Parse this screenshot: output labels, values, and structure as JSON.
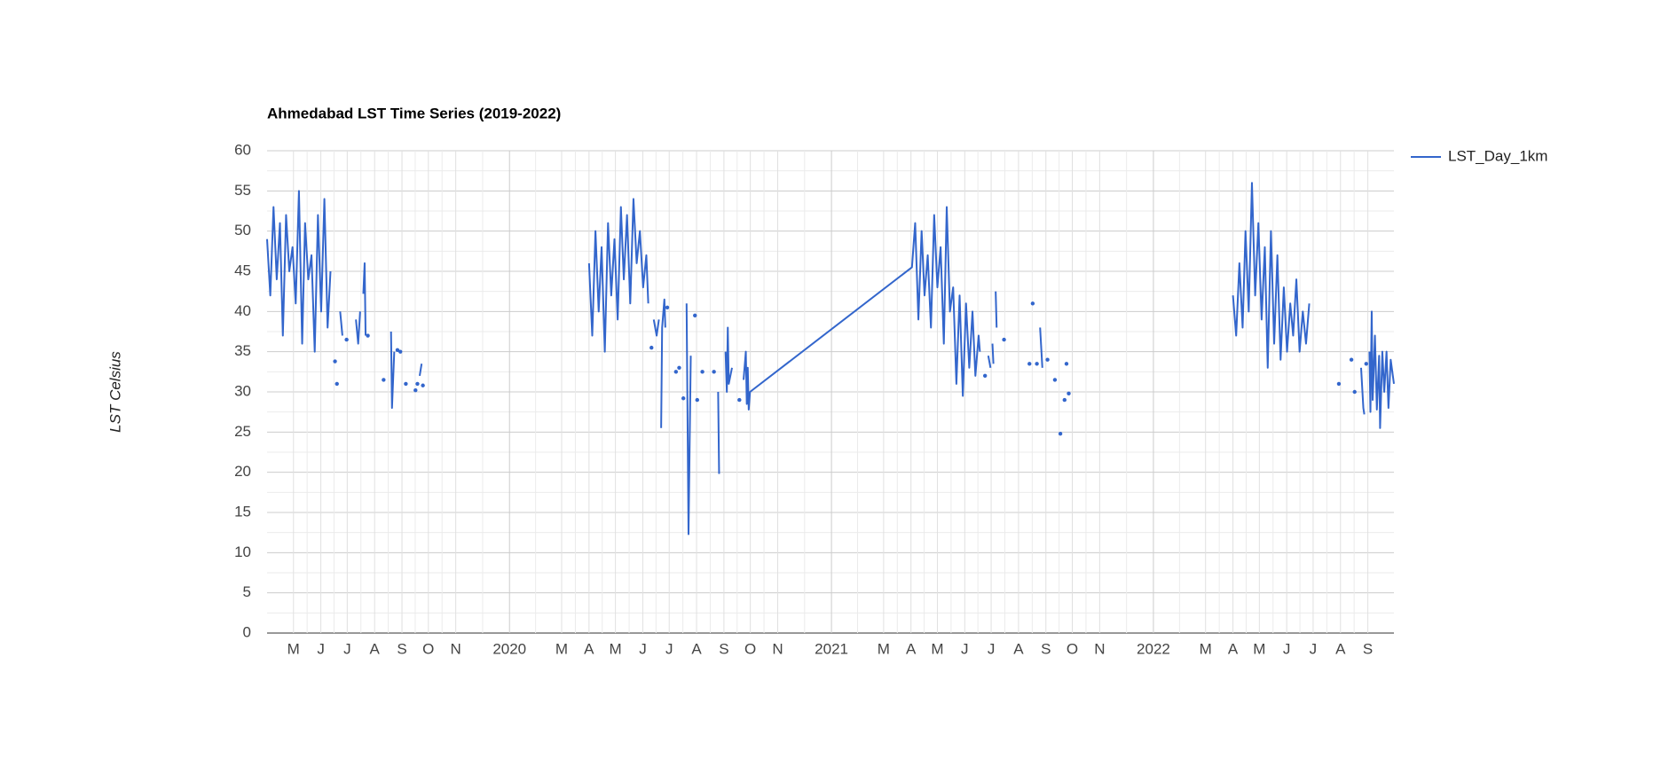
{
  "chart_data": {
    "type": "line",
    "title": "Ahmedabad LST Time Series (2019-2022)",
    "y_label": "LST Celsius",
    "legend_position": "right",
    "grid": true,
    "xlim": [
      2019.247,
      2022.747
    ],
    "ylim": [
      0,
      60
    ],
    "yticks": [
      0,
      5,
      10,
      15,
      20,
      25,
      30,
      35,
      40,
      45,
      50,
      55,
      60
    ],
    "xticks": [
      {
        "value": 2019.329,
        "label": "M"
      },
      {
        "value": 2019.414,
        "label": "J"
      },
      {
        "value": 2019.496,
        "label": "J"
      },
      {
        "value": 2019.581,
        "label": "A"
      },
      {
        "value": 2019.666,
        "label": "S"
      },
      {
        "value": 2019.748,
        "label": "O"
      },
      {
        "value": 2019.833,
        "label": "N"
      },
      2020,
      {
        "value": 2020.162,
        "label": "M"
      },
      {
        "value": 2020.247,
        "label": "A"
      },
      {
        "value": 2020.329,
        "label": "M"
      },
      {
        "value": 2020.414,
        "label": "J"
      },
      {
        "value": 2020.496,
        "label": "J"
      },
      {
        "value": 2020.581,
        "label": "A"
      },
      {
        "value": 2020.666,
        "label": "S"
      },
      {
        "value": 2020.748,
        "label": "O"
      },
      {
        "value": 2020.833,
        "label": "N"
      },
      2021,
      {
        "value": 2021.162,
        "label": "M"
      },
      {
        "value": 2021.247,
        "label": "A"
      },
      {
        "value": 2021.329,
        "label": "M"
      },
      {
        "value": 2021.414,
        "label": "J"
      },
      {
        "value": 2021.496,
        "label": "J"
      },
      {
        "value": 2021.581,
        "label": "A"
      },
      {
        "value": 2021.666,
        "label": "S"
      },
      {
        "value": 2021.748,
        "label": "O"
      },
      {
        "value": 2021.833,
        "label": "N"
      },
      2022,
      {
        "value": 2022.162,
        "label": "M"
      },
      {
        "value": 2022.247,
        "label": "A"
      },
      {
        "value": 2022.329,
        "label": "M"
      },
      {
        "value": 2022.414,
        "label": "J"
      },
      {
        "value": 2022.496,
        "label": "J"
      },
      {
        "value": 2022.581,
        "label": "A"
      },
      {
        "value": 2022.666,
        "label": "S"
      }
    ],
    "x": [
      2019.247,
      2019.257,
      2019.267,
      2019.277,
      2019.287,
      2019.296,
      2019.306,
      2019.316,
      2019.326,
      2019.336,
      2019.346,
      2019.356,
      2019.365,
      2019.375,
      2019.385,
      2019.395,
      2019.405,
      2019.415,
      2019.425,
      2019.435,
      2019.444,
      2019.451,
      2019.458,
      2019.461,
      2019.464,
      2019.469,
      2019.474,
      2019.481,
      2019.487,
      2019.494,
      2019.508,
      2019.523,
      2019.53,
      2019.536,
      2019.541,
      2019.546,
      2019.55,
      2019.553,
      2019.556,
      2019.56,
      2019.585,
      2019.609,
      2019.62,
      2019.632,
      2019.635,
      2019.642,
      2019.647,
      2019.652,
      2019.656,
      2019.661,
      2019.67,
      2019.678,
      2019.693,
      2019.708,
      2019.711,
      2019.714,
      2019.718,
      2019.721,
      2019.727,
      2019.729,
      2019.731,
      2019.99,
      2020.247,
      2020.257,
      2020.267,
      2020.277,
      2020.286,
      2020.296,
      2020.306,
      2020.316,
      2020.326,
      2020.336,
      2020.346,
      2020.355,
      2020.365,
      2020.375,
      2020.385,
      2020.395,
      2020.405,
      2020.415,
      2020.425,
      2020.431,
      2020.436,
      2020.441,
      2020.444,
      2020.448,
      2020.457,
      2020.464,
      2020.468,
      2020.471,
      2020.474,
      2020.481,
      2020.484,
      2020.487,
      2020.49,
      2020.503,
      2020.517,
      2020.522,
      2020.527,
      2020.533,
      2020.54,
      2020.545,
      2020.55,
      2020.556,
      2020.563,
      2020.57,
      2020.576,
      2020.58,
      2020.583,
      2020.591,
      2020.599,
      2020.617,
      2020.635,
      2020.641,
      2020.648,
      2020.651,
      2020.661,
      2020.671,
      2020.675,
      2020.678,
      2020.681,
      2020.691,
      2020.702,
      2020.714,
      2020.72,
      2020.727,
      2020.734,
      2020.737,
      2020.74,
      2020.743,
      2020.747,
      2021.25,
      2021.26,
      2021.27,
      2021.28,
      2021.289,
      2021.299,
      2021.309,
      2021.319,
      2021.329,
      2021.339,
      2021.349,
      2021.358,
      2021.368,
      2021.378,
      2021.388,
      2021.398,
      2021.408,
      2021.418,
      2021.428,
      2021.438,
      2021.447,
      2021.457,
      2021.461,
      2021.469,
      2021.477,
      2021.482,
      2021.487,
      2021.494,
      2021.497,
      2021.5,
      2021.503,
      2021.506,
      2021.51,
      2021.513,
      2021.525,
      2021.536,
      2021.575,
      2021.615,
      2021.62,
      2021.625,
      2021.631,
      2021.638,
      2021.643,
      2021.648,
      2021.655,
      2021.663,
      2021.671,
      2021.682,
      2021.694,
      2021.702,
      2021.711,
      2021.717,
      2021.724,
      2021.727,
      2021.73,
      2021.733,
      2021.737,
      2022.0,
      2022.247,
      2022.257,
      2022.267,
      2022.277,
      2022.286,
      2022.296,
      2022.306,
      2022.316,
      2022.326,
      2022.336,
      2022.346,
      2022.355,
      2022.365,
      2022.375,
      2022.385,
      2022.395,
      2022.405,
      2022.415,
      2022.425,
      2022.434,
      2022.444,
      2022.454,
      2022.464,
      2022.474,
      2022.484,
      2022.53,
      2022.576,
      2022.595,
      2022.615,
      2022.62,
      2022.625,
      2022.635,
      2022.645,
      2022.652,
      2022.655,
      2022.658,
      2022.661,
      2022.666,
      2022.671,
      2022.674,
      2022.678,
      2022.681,
      2022.688,
      2022.694,
      2022.701,
      2022.704,
      2022.711,
      2022.717,
      2022.724,
      2022.73,
      2022.737,
      2022.747
    ],
    "series": [
      {
        "name": "LST_Day_1km",
        "color": "#3366cc",
        "values": [
          49,
          42,
          53,
          44,
          51,
          37,
          52,
          45,
          48,
          41,
          55,
          36,
          51,
          44,
          47,
          35,
          52,
          40,
          54,
          38,
          45,
          null,
          33.8,
          null,
          31,
          null,
          40,
          37,
          null,
          36.5,
          null,
          39,
          36,
          40,
          null,
          42.2,
          46,
          37,
          null,
          37,
          null,
          31.5,
          null,
          37.5,
          28,
          35,
          null,
          35.2,
          null,
          35,
          null,
          31,
          null,
          30.2,
          null,
          31,
          null,
          32,
          33.5,
          null,
          30.8,
          null,
          46,
          37,
          50,
          40,
          48,
          35,
          51,
          42,
          49,
          39,
          53,
          44,
          52,
          41,
          54,
          46,
          50,
          43,
          47,
          41,
          null,
          35.5,
          null,
          39,
          37,
          39,
          null,
          25.5,
          38,
          41.5,
          38,
          null,
          40.5,
          null,
          32.5,
          null,
          33,
          null,
          29.2,
          null,
          41,
          12.3,
          34.5,
          null,
          39.5,
          null,
          29,
          null,
          32.5,
          null,
          32.5,
          null,
          30,
          19.8,
          null,
          35,
          30,
          38,
          31,
          33,
          null,
          29,
          null,
          31.5,
          35,
          28.5,
          33,
          27.8,
          30,
          45.5,
          51,
          39,
          50,
          42,
          47,
          38,
          52,
          43,
          48,
          36,
          53,
          40,
          43,
          31,
          42,
          29.5,
          41,
          33,
          40,
          32,
          37,
          35,
          null,
          32,
          null,
          34.5,
          33,
          null,
          36,
          33.5,
          null,
          42.5,
          38,
          null,
          36.5,
          null,
          33.5,
          null,
          41,
          null,
          33.5,
          null,
          38,
          33,
          null,
          34,
          null,
          31.5,
          null,
          24.8,
          null,
          29,
          null,
          33.5,
          null,
          29.8,
          null,
          42,
          37,
          46,
          38,
          50,
          40,
          56,
          42,
          51,
          39,
          48,
          33,
          50,
          36,
          47,
          34,
          43,
          35,
          41,
          37,
          44,
          35,
          40,
          36,
          41,
          null,
          31,
          null,
          34,
          null,
          30,
          null,
          33,
          28,
          27.2,
          null,
          33.5,
          null,
          35,
          27.5,
          40,
          29,
          37,
          27.8,
          34.5,
          25.5,
          35,
          30,
          35,
          28,
          34,
          31
        ]
      }
    ]
  }
}
